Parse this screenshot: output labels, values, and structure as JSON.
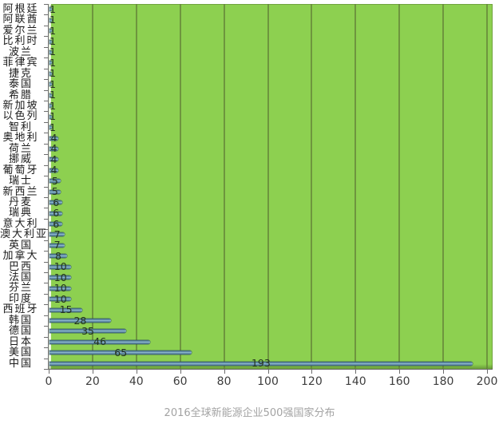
{
  "chart_data": {
    "type": "bar",
    "orientation": "horizontal",
    "title": "2016全球新能源企业500强国家分布",
    "categories": [
      "阿根廷",
      "阿联酋",
      "爱尔兰",
      "比利时",
      "波兰",
      "菲律宾",
      "捷克",
      "泰国",
      "希腊",
      "新加坡",
      "以色列",
      "智利",
      "奥地利",
      "荷兰",
      "挪威",
      "葡萄牙",
      "瑞士",
      "新西兰",
      "丹麦",
      "瑞典",
      "意大利",
      "澳大利亚",
      "英国",
      "加拿大",
      "巴西",
      "法国",
      "芬兰",
      "印度",
      "西班牙",
      "韩国",
      "德国",
      "日本",
      "美国",
      "中国"
    ],
    "values": [
      1,
      1,
      1,
      1,
      1,
      1,
      1,
      1,
      1,
      1,
      1,
      1,
      4,
      4,
      4,
      4,
      5,
      5,
      6,
      6,
      6,
      7,
      7,
      8,
      10,
      10,
      10,
      10,
      15,
      28,
      35,
      46,
      65,
      193
    ],
    "total": 500,
    "xlim": [
      0,
      200
    ],
    "x_tick_step": 20,
    "x_tick_labels": [
      "0",
      "20",
      "40",
      "60",
      "80",
      "100",
      "120",
      "140",
      "160",
      "180",
      "200"
    ],
    "grid": true,
    "legend": "none",
    "value_label_position": "center",
    "colors": {
      "plot_background": "#8dd050",
      "gridline": "#648238",
      "bar_fill_mid": "#95bed2",
      "bar_fill": "#5e8ba5",
      "bar_edge": "#3c5f76",
      "axis": "#6e6e6e",
      "tick_label": "#3d3d3d",
      "category_label": "#1a1a1a",
      "value_label": "#23321f",
      "title": "#a3a3a3"
    }
  }
}
